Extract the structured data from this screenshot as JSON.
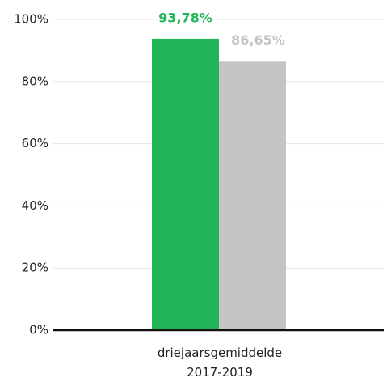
{
  "chart_data": {
    "type": "bar",
    "categories": [
      "driejaarsgemiddelde 2017-2019"
    ],
    "series": [
      {
        "color": "#22b558",
        "values": [
          93.78
        ],
        "value_labels": [
          "93,78%"
        ]
      },
      {
        "color": "#c4c4c4",
        "values": [
          86.65
        ],
        "value_labels": [
          "86,65%"
        ]
      }
    ],
    "ylim": [
      0,
      100
    ],
    "yticks": [
      {
        "value": 0,
        "label": "0%"
      },
      {
        "value": 20,
        "label": "20%"
      },
      {
        "value": 40,
        "label": "40%"
      },
      {
        "value": 60,
        "label": "60%"
      },
      {
        "value": 80,
        "label": "80%"
      },
      {
        "value": 100,
        "label": "100%"
      }
    ],
    "grid": true
  }
}
